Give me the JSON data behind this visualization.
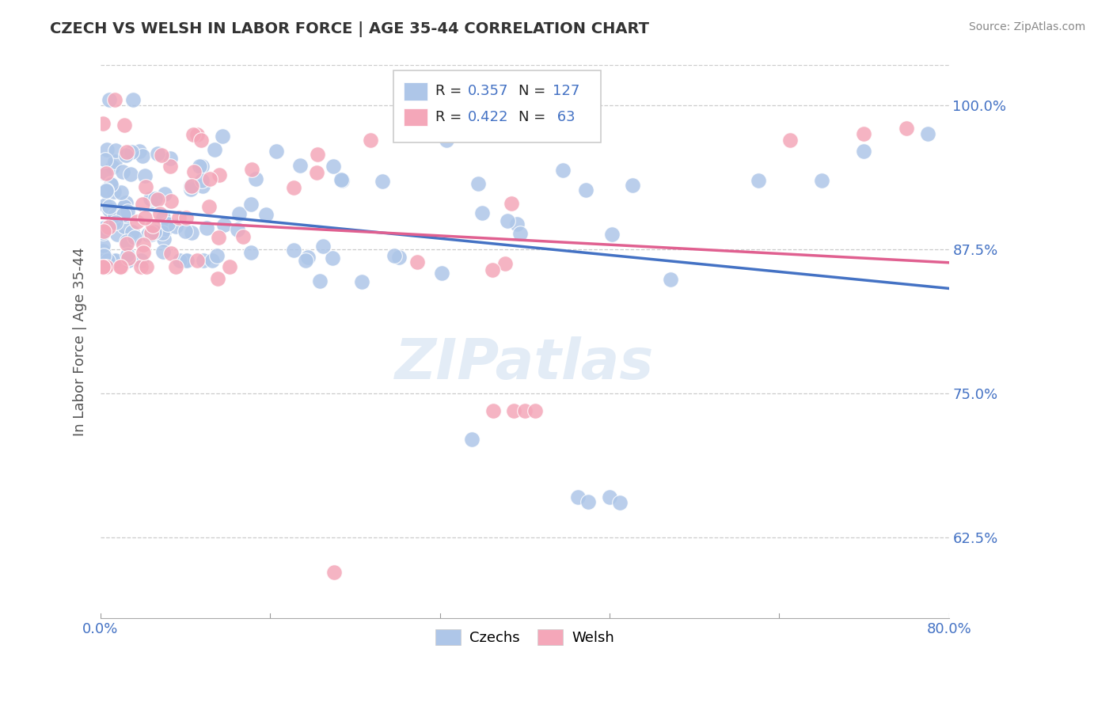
{
  "title": "CZECH VS WELSH IN LABOR FORCE | AGE 35-44 CORRELATION CHART",
  "source": "Source: ZipAtlas.com",
  "ylabel": "In Labor Force | Age 35-44",
  "xlim": [
    0.0,
    0.8
  ],
  "ylim": [
    0.555,
    1.035
  ],
  "xtick_labels": [
    "0.0%",
    "80.0%"
  ],
  "xtick_positions": [
    0.0,
    0.8
  ],
  "ytick_labels": [
    "100.0%",
    "87.5%",
    "75.0%",
    "62.5%"
  ],
  "ytick_positions": [
    1.0,
    0.875,
    0.75,
    0.625
  ],
  "czech_color": "#aec6e8",
  "welsh_color": "#f4a7b9",
  "czech_line_color": "#4472c4",
  "welsh_line_color": "#e06090",
  "czech_R": 0.357,
  "czech_N": 127,
  "welsh_R": 0.422,
  "welsh_N": 63,
  "title_color": "#333333",
  "axis_label_color": "#4472c4",
  "background_color": "#ffffff",
  "watermark": "ZIPatlas",
  "legend_czechs": "Czechs",
  "legend_welsh": "Welsh",
  "seed": 42
}
